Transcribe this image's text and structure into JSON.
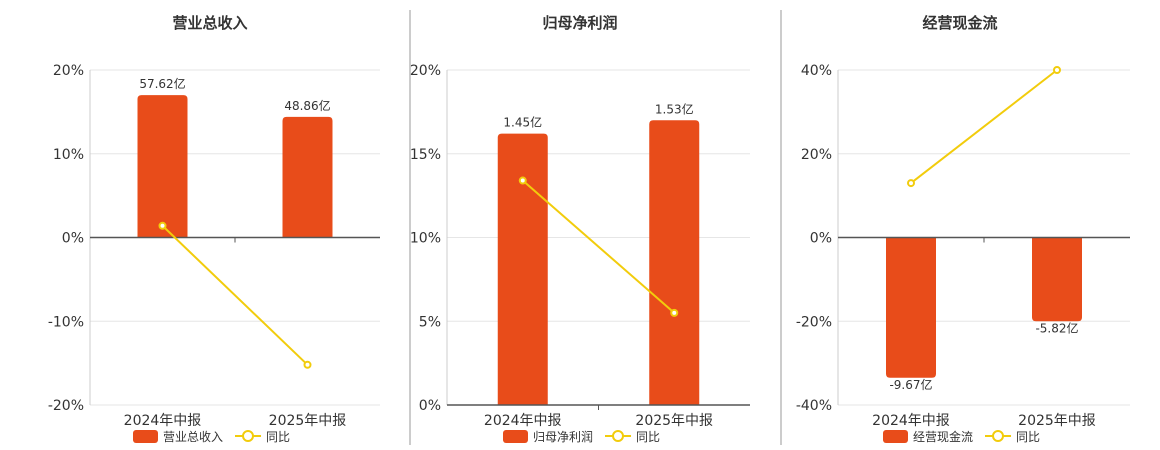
{
  "colors": {
    "bar": "#e84c1a",
    "line": "#f2cc0c",
    "grid": "#e6e6e6",
    "axis": "#333333",
    "divider": "#999999"
  },
  "legend_line_label": "同比",
  "chart_data": [
    {
      "type": "bar",
      "title": "营业总收入",
      "categories": [
        "2024年中报",
        "2025年中报"
      ],
      "bar_series_name": "营业总收入",
      "bar_labels": [
        "57.62亿",
        "48.86亿"
      ],
      "bar_values_yuan_yi": [
        57.62,
        48.86
      ],
      "bar_heights_pct_axis": [
        17,
        14.4
      ],
      "line_values_pct": [
        1.4,
        -15.2
      ],
      "ylim": [
        -20,
        20
      ],
      "yticks": [
        -20,
        -10,
        0,
        10,
        20
      ],
      "ytick_labels": [
        "-20%",
        "-10%",
        "0%",
        "10%",
        "20%"
      ]
    },
    {
      "type": "bar",
      "title": "归母净利润",
      "categories": [
        "2024年中报",
        "2025年中报"
      ],
      "bar_series_name": "归母净利润",
      "bar_labels": [
        "1.45亿",
        "1.53亿"
      ],
      "bar_values_yuan_yi": [
        1.45,
        1.53
      ],
      "bar_heights_pct_axis": [
        16.2,
        17
      ],
      "line_values_pct": [
        13.4,
        5.5
      ],
      "ylim": [
        0,
        20
      ],
      "yticks": [
        0,
        5,
        10,
        15,
        20
      ],
      "ytick_labels": [
        "0%",
        "5%",
        "10%",
        "15%",
        "20%"
      ]
    },
    {
      "type": "bar",
      "title": "经营现金流",
      "categories": [
        "2024年中报",
        "2025年中报"
      ],
      "bar_series_name": "经营现金流",
      "bar_labels": [
        "-9.67亿",
        "-5.82亿"
      ],
      "bar_values_yuan_yi": [
        -9.67,
        -5.82
      ],
      "bar_heights_pct_axis": [
        -33.5,
        -20
      ],
      "line_values_pct": [
        13,
        40
      ],
      "ylim": [
        -40,
        40
      ],
      "yticks": [
        -40,
        -20,
        0,
        20,
        40
      ],
      "ytick_labels": [
        "-40%",
        "-20%",
        "0%",
        "20%",
        "40%"
      ]
    }
  ]
}
